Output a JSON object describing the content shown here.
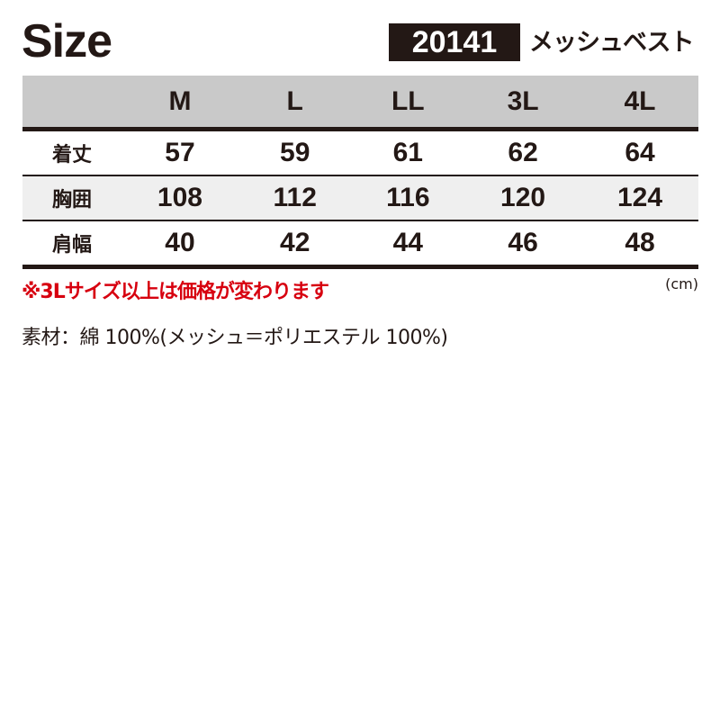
{
  "title": "Size",
  "product": {
    "code": "20141",
    "name": "メッシュベスト"
  },
  "table": {
    "columns": [
      "",
      "M",
      "L",
      "LL",
      "3L",
      "4L"
    ],
    "rows": [
      {
        "label": "着丈",
        "values": [
          "57",
          "59",
          "61",
          "62",
          "64"
        ]
      },
      {
        "label": "胸囲",
        "values": [
          "108",
          "112",
          "116",
          "120",
          "124"
        ]
      },
      {
        "label": "肩幅",
        "values": [
          "40",
          "42",
          "44",
          "46",
          "48"
        ]
      }
    ]
  },
  "note": "※3Lサイズ以上は価格が変わります",
  "unit": "(cm)",
  "material": "素材：綿 100%(メッシュ＝ポリエステル 100%)",
  "colors": {
    "text": "#231815",
    "note": "#d7000f",
    "header_bg": "#c9c9c9",
    "alt_row_bg": "#efefef"
  }
}
